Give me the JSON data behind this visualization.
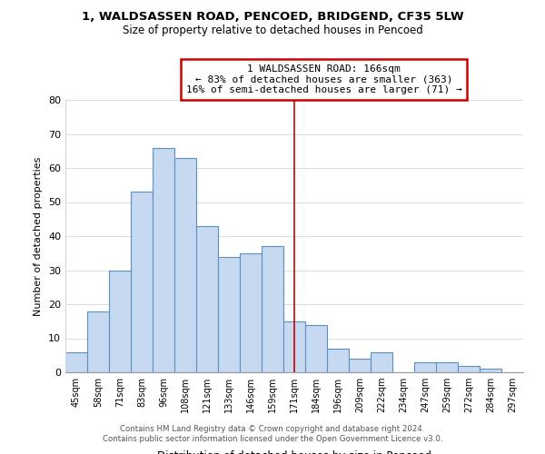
{
  "title": "1, WALDSASSEN ROAD, PENCOED, BRIDGEND, CF35 5LW",
  "subtitle": "Size of property relative to detached houses in Pencoed",
  "xlabel": "Distribution of detached houses by size in Pencoed",
  "ylabel": "Number of detached properties",
  "categories": [
    "45sqm",
    "58sqm",
    "71sqm",
    "83sqm",
    "96sqm",
    "108sqm",
    "121sqm",
    "133sqm",
    "146sqm",
    "159sqm",
    "171sqm",
    "184sqm",
    "196sqm",
    "209sqm",
    "222sqm",
    "234sqm",
    "247sqm",
    "259sqm",
    "272sqm",
    "284sqm",
    "297sqm"
  ],
  "values": [
    6,
    18,
    30,
    53,
    66,
    63,
    43,
    34,
    35,
    37,
    15,
    14,
    7,
    4,
    6,
    0,
    3,
    3,
    2,
    1,
    0
  ],
  "bar_color": "#c6d9f0",
  "bar_edge_color": "#5a8fc3",
  "highlight_index": 10,
  "highlight_line_color": "#cc0000",
  "ylim": [
    0,
    80
  ],
  "yticks": [
    0,
    10,
    20,
    30,
    40,
    50,
    60,
    70,
    80
  ],
  "annotation_title": "1 WALDSASSEN ROAD: 166sqm",
  "annotation_line1": "← 83% of detached houses are smaller (363)",
  "annotation_line2": "16% of semi-detached houses are larger (71) →",
  "annotation_box_color": "#ffffff",
  "annotation_box_edgecolor": "#cc0000",
  "footer1": "Contains HM Land Registry data © Crown copyright and database right 2024.",
  "footer2": "Contains public sector information licensed under the Open Government Licence v3.0.",
  "bg_color": "#ffffff",
  "grid_color": "#d0d8e8"
}
